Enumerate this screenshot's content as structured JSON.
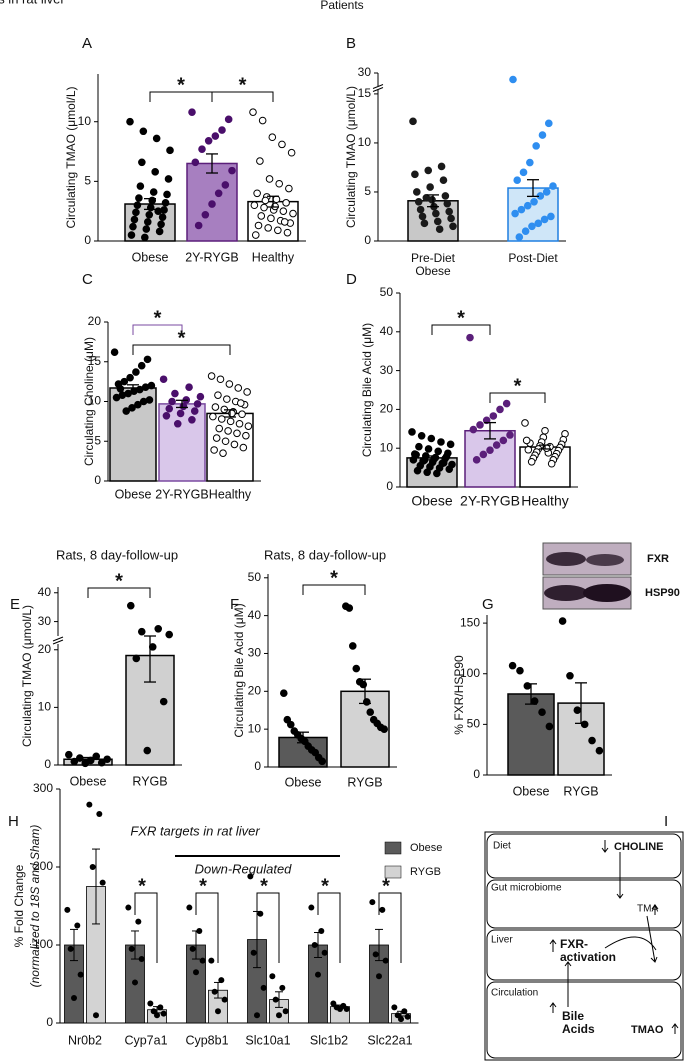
{
  "figure_title": "Patients",
  "chart_data": [
    {
      "type": "bar",
      "panel": "A",
      "y_label": "Circulating TMAO (μmol/L)",
      "categories": [
        "Obese",
        "2Y-RYGB",
        "Healthy"
      ],
      "values": [
        3.1,
        6.5,
        3.3
      ],
      "errors": [
        0.45,
        0.8,
        0.45
      ],
      "colors": [
        "#c8c8c8",
        "#a77fc0",
        "#ffffff"
      ],
      "edge_colors": [
        "#000000",
        "#5b1f7a",
        "#000000"
      ],
      "point_colors": [
        "#000000",
        "#4a0f6b",
        "#ffffff"
      ],
      "point_edge_colors": [
        "#000000",
        "#4a0f6b",
        "#000000"
      ],
      "ylim": [
        0,
        14
      ],
      "yticks": [
        0,
        5,
        10
      ],
      "points": [
        [
          10,
          9.2,
          8.6,
          7.6,
          6.6,
          5.8,
          5.2,
          4.6,
          4.1,
          3.9,
          3.6,
          3.4,
          3.2,
          3,
          2.8,
          2.6,
          2.4,
          2.2,
          2,
          1.8,
          1.6,
          1.4,
          1.2,
          1,
          0.8,
          0.5,
          0.3,
          2.5
        ],
        [
          10.8,
          10.2,
          9.3,
          8.8,
          8.4,
          7.7,
          6.6,
          5.9,
          4.7,
          4,
          3.1,
          2.2,
          1.3
        ],
        [
          10.8,
          10.1,
          8.7,
          8.1,
          7.4,
          6.7,
          5.2,
          4.8,
          4.4,
          4,
          3.7,
          3.5,
          3.2,
          3,
          2.8,
          2.6,
          2.5,
          2.3,
          2.1,
          1.9,
          1.7,
          1.5,
          1.3,
          1.1,
          0.9,
          0.7,
          0.5,
          3.4,
          2.9,
          1.6
        ]
      ],
      "brackets": [
        {
          "between": [
            0,
            1
          ],
          "label": "*"
        },
        {
          "between": [
            1,
            2
          ],
          "label": "*"
        }
      ]
    },
    {
      "type": "bar",
      "panel": "B",
      "y_label": "Circulating TMAO (μmol/L)",
      "categories": [
        "Pre-Diet Obese",
        "Post-Diet"
      ],
      "values": [
        4.1,
        5.4
      ],
      "errors": [
        0.6,
        0.85
      ],
      "colors": [
        "#c8c8c8",
        "#cfe6f8"
      ],
      "edge_colors": [
        "#000000",
        "#1f7fe0"
      ],
      "point_colors": [
        "#1a1a1a",
        "#2f8ef0"
      ],
      "point_edge_colors": [
        "#1a1a1a",
        "#2f8ef0"
      ],
      "ylim": [
        0,
        30
      ],
      "yticks": [
        0,
        5,
        10,
        15,
        30
      ],
      "points": [
        [
          12.2,
          7.6,
          7.2,
          6.8,
          6.2,
          5.5,
          5,
          4.6,
          4.2,
          4,
          3.8,
          3.5,
          3.2,
          3,
          2.8,
          2.5,
          2.3,
          2,
          1.8,
          1.5,
          1.2,
          4.4
        ],
        [
          27,
          12,
          10.8,
          9.7,
          8,
          7,
          6.2,
          5.6,
          5,
          4.6,
          4,
          3.6,
          3.2,
          2.8,
          2.5,
          2.2,
          1.8,
          1.5,
          1,
          0.4
        ]
      ],
      "brackets": []
    },
    {
      "type": "bar",
      "panel": "C",
      "y_label": "Circulating Choline (μM)",
      "categories": [
        "Obese",
        "2Y-RYGB",
        "Healthy"
      ],
      "values": [
        11.7,
        9.7,
        8.5
      ],
      "errors": [
        0.4,
        0.45,
        0.45
      ],
      "colors": [
        "#c8c8c8",
        "#d9c7ea",
        "#ffffff"
      ],
      "edge_colors": [
        "#000000",
        "#7a4aa0",
        "#000000"
      ],
      "point_colors": [
        "#000000",
        "#4a0f6b",
        "#ffffff"
      ],
      "point_edge_colors": [
        "#000000",
        "#4a0f6b",
        "#000000"
      ],
      "ylim": [
        0,
        20
      ],
      "yticks": [
        0,
        5,
        10,
        15,
        20
      ],
      "points": [
        [
          16.2,
          15.3,
          14.5,
          13.7,
          13,
          12.5,
          12.2,
          12,
          11.8,
          11.5,
          11.3,
          11,
          10.8,
          10.5,
          10.2,
          10,
          9.6,
          9.2,
          8.8,
          11.6
        ],
        [
          12.8,
          11.8,
          11,
          10.6,
          10.2,
          10,
          9.7,
          9.4,
          9.1,
          8.8,
          8.5,
          8.2,
          7.7,
          7.2
        ],
        [
          13.2,
          12.8,
          12.2,
          11.7,
          11.2,
          10.8,
          10.3,
          10,
          9.6,
          9.3,
          9,
          8.7,
          8.4,
          8.1,
          7.8,
          7.5,
          7.2,
          6.9,
          6.6,
          6.3,
          6,
          5.7,
          5.4,
          5,
          4.6,
          4.2,
          3.9,
          3.5,
          8.5,
          9.8
        ]
      ],
      "brackets": [
        {
          "between": [
            0,
            1
          ],
          "label": "*",
          "color": "#7a4aa0"
        },
        {
          "between": [
            0,
            2
          ],
          "label": "*"
        }
      ]
    },
    {
      "type": "bar",
      "panel": "D",
      "y_label": "Circulating Bile Acid (μM)",
      "categories": [
        "Obese",
        "2Y-RYGB",
        "Healthy"
      ],
      "values": [
        7.5,
        14.5,
        10.3
      ],
      "errors": [
        0.5,
        2.1,
        0.5
      ],
      "colors": [
        "#c8c8c8",
        "#d9c7ea",
        "#ffffff"
      ],
      "edge_colors": [
        "#000000",
        "#5b1f7a",
        "#000000"
      ],
      "point_colors": [
        "#000000",
        "#5b1f7a",
        "#ffffff"
      ],
      "point_edge_colors": [
        "#000000",
        "#5b1f7a",
        "#000000"
      ],
      "ylim": [
        0,
        50
      ],
      "yticks": [
        0,
        10,
        20,
        30,
        40,
        50
      ],
      "points": [
        [
          14.2,
          13.2,
          12.5,
          11.6,
          11,
          10.4,
          9.8,
          9.2,
          8.7,
          8.3,
          8,
          7.6,
          7.3,
          7,
          6.7,
          6.4,
          6.1,
          5.8,
          5.5,
          5.2,
          4.9,
          4.6,
          4.2,
          3.8,
          3.5,
          7.8,
          8.5,
          6.9,
          7.2,
          6.2
        ],
        [
          38.5,
          21.5,
          20,
          18.3,
          17.2,
          16,
          14.8,
          13.4,
          12,
          10.8,
          9.5,
          8.4,
          7
        ],
        [
          16.5,
          14.5,
          13.7,
          12.8,
          12.2,
          11.6,
          11,
          10.6,
          10.2,
          9.8,
          9.4,
          9,
          8.6,
          8.2,
          7.8,
          7.4,
          7,
          6.5,
          6,
          11.3,
          10.4,
          9.6,
          8.8,
          12,
          10
        ]
      ],
      "brackets": [
        {
          "between": [
            0,
            1
          ],
          "label": "*"
        },
        {
          "between": [
            1,
            2
          ],
          "label": "*"
        }
      ]
    },
    {
      "type": "bar",
      "panel": "E",
      "title": "Rats, 8 day-follow-up",
      "y_label": "Circulating TMAO (μmol/L)",
      "categories": [
        "Obese",
        "RYGB"
      ],
      "values": [
        1.0,
        19
      ],
      "errors": [
        0.3,
        4.6
      ],
      "colors": [
        "#d0d0d0",
        "#d0d0d0"
      ],
      "edge_colors": [
        "#000000",
        "#000000"
      ],
      "point_colors": [
        "#000000",
        "#000000"
      ],
      "point_edge_colors": [
        "#000000",
        "#000000"
      ],
      "ylim": [
        0,
        42
      ],
      "yticks": [
        0,
        10,
        20,
        30,
        40
      ],
      "points": [
        [
          1.8,
          1.5,
          1.2,
          1,
          0.8,
          0.6,
          0.4,
          0.3
        ],
        [
          35.5,
          27.5,
          26.5,
          25.5,
          20.5,
          18.5,
          11,
          2.5
        ]
      ],
      "brackets": [
        {
          "between": [
            0,
            1
          ],
          "label": "*"
        }
      ]
    },
    {
      "type": "bar",
      "panel": "F",
      "title": "Rats, 8 day-follow-up",
      "y_label": "Circulating Bile Acid (μM)",
      "categories": [
        "Obese",
        "RYGB"
      ],
      "values": [
        7.8,
        20
      ],
      "errors": [
        1.4,
        3.2
      ],
      "colors": [
        "#5a5a5a",
        "#d3d3d3"
      ],
      "edge_colors": [
        "#000000",
        "#000000"
      ],
      "point_colors": [
        "#000000",
        "#000000"
      ],
      "point_edge_colors": [
        "#000000",
        "#000000"
      ],
      "ylim": [
        0,
        51
      ],
      "yticks": [
        0,
        10,
        20,
        30,
        40,
        50
      ],
      "points": [
        [
          19.5,
          12.5,
          11.2,
          9.5,
          8.5,
          7.5,
          6.8,
          5.5,
          4.5,
          3.8,
          2.5,
          1.5
        ],
        [
          42.5,
          42,
          32,
          26,
          22.5,
          21.8,
          17.2,
          14.5,
          12.5,
          11.5,
          10.5,
          10
        ]
      ],
      "brackets": [
        {
          "between": [
            0,
            1
          ],
          "label": "*"
        }
      ]
    },
    {
      "type": "bar",
      "panel": "G",
      "y_label": "% FXR/HSP90",
      "blot_labels": [
        "FXR",
        "HSP90"
      ],
      "categories": [
        "Obese",
        "RYGB"
      ],
      "values": [
        80,
        71
      ],
      "errors": [
        10,
        20
      ],
      "colors": [
        "#5a5a5a",
        "#d3d3d3"
      ],
      "edge_colors": [
        "#000000",
        "#000000"
      ],
      "point_colors": [
        "#000000",
        "#000000"
      ],
      "point_edge_colors": [
        "#000000",
        "#000000"
      ],
      "ylim": [
        0,
        158
      ],
      "yticks": [
        0,
        50,
        100,
        150
      ],
      "points": [
        [
          108,
          103,
          88,
          73,
          62,
          48
        ],
        [
          152,
          98,
          64,
          50,
          34,
          24
        ]
      ],
      "brackets": []
    },
    {
      "type": "grouped_bar",
      "panel": "H",
      "title": "FXR targets in rat liver",
      "subtitle": "Down-Regulated",
      "y_label": "% Fold Change",
      "y_label_note": "(normalized to 18S and Sham)",
      "categories": [
        "Nr0b2",
        "Cyp7a1",
        "Cyp8b1",
        "Slc10a1",
        "Slc1b2",
        "Slc22a1"
      ],
      "ylim": [
        0,
        300
      ],
      "yticks": [
        0,
        100,
        200,
        300
      ],
      "series": [
        {
          "name": "Obese",
          "color": "#5a5a5a",
          "values": [
            100,
            100,
            100,
            107,
            100,
            100
          ],
          "errors": [
            20,
            18,
            18,
            36,
            16,
            20
          ],
          "points": [
            [
              145,
              125,
              95,
              62,
              32
            ],
            [
              148,
              130,
              95,
              82,
              52
            ],
            [
              148,
              118,
              95,
              80,
              65
            ],
            [
              188,
              140,
              90,
              45,
              10
            ],
            [
              148,
              118,
              100,
              90,
              62
            ],
            [
              155,
              145,
              88,
              80,
              60
            ]
          ]
        },
        {
          "name": "RYGB",
          "color": "#d3d3d3",
          "values": [
            175,
            17,
            42,
            30,
            21,
            12
          ],
          "errors": [
            48,
            4,
            10,
            10,
            2,
            3
          ],
          "points": [
            [
              280,
              268,
              200,
              180,
              10
            ],
            [
              25,
              20,
              15,
              12,
              10
            ],
            [
              80,
              55,
              40,
              30,
              15
            ],
            [
              60,
              45,
              30,
              15,
              10
            ],
            [
              25,
              22,
              20,
              18,
              18
            ],
            [
              20,
              15,
              10,
              8,
              5
            ]
          ]
        }
      ],
      "brackets": [
        {
          "category": 1,
          "label": "*"
        },
        {
          "category": 2,
          "label": "*"
        },
        {
          "category": 3,
          "label": "*"
        },
        {
          "category": 4,
          "label": "*"
        },
        {
          "category": 5,
          "label": "*"
        }
      ]
    }
  ],
  "diagram": {
    "panel": "I",
    "compartments": [
      {
        "name": "Diet",
        "item": "CHOLINE"
      },
      {
        "name": "Gut microbiome",
        "item": "TMA"
      },
      {
        "name": "Liver",
        "item": "FXR-activation"
      },
      {
        "name": "Circulation",
        "items": [
          "Bile Acids",
          "TMAO"
        ]
      }
    ]
  }
}
